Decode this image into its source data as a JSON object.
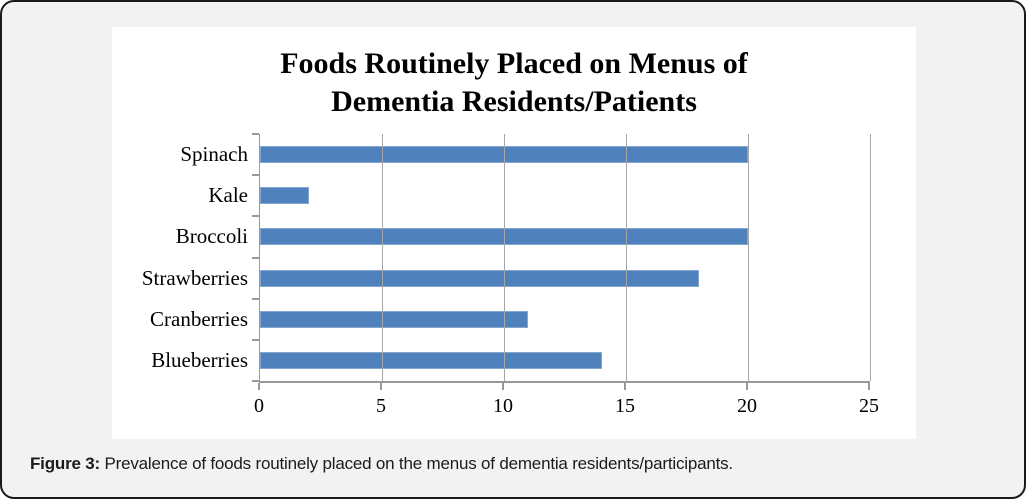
{
  "panel": {
    "caption_label": "Figure 3:",
    "caption_text": " Prevalence of foods routinely placed on the menus of dementia residents/participants."
  },
  "chart_data": {
    "type": "bar",
    "orientation": "horizontal",
    "title": "Foods Routinely Placed on Menus of Dementia Residents/Patients",
    "title_lines": [
      "Foods Routinely Placed on Menus of",
      "Dementia Residents/Patients"
    ],
    "categories": [
      "Spinach",
      "Kale",
      "Broccoli",
      "Strawberries",
      "Cranberries",
      "Blueberries"
    ],
    "values": [
      20,
      2,
      20,
      18,
      11,
      14
    ],
    "xlabel": "",
    "ylabel": "",
    "xlim": [
      0,
      25
    ],
    "xticks": [
      0,
      5,
      10,
      15,
      20,
      25
    ],
    "grid": true,
    "legend": false,
    "bar_color": "#4f81bd",
    "gridline_color": "#a6a6a6",
    "axis_color": "#999999",
    "background_color": "#ffffff",
    "panel_color": "#f2f2f2"
  }
}
